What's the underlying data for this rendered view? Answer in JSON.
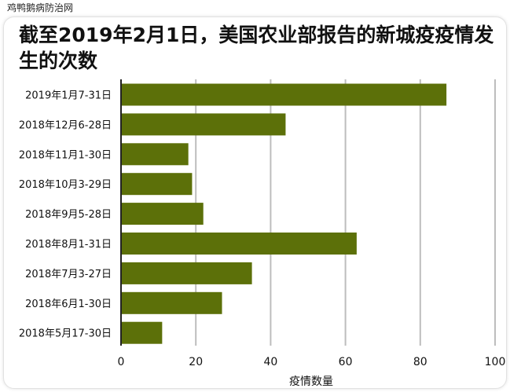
{
  "watermark": "鸡鸭鹅病防治网",
  "chart_data": {
    "type": "bar",
    "orientation": "horizontal",
    "title": "截至2019年2月1日，美国农业部报告的新城疫疫情发生的次数",
    "xlabel": "疫情数量",
    "ylabel": "",
    "categories": [
      "2019年1月7-31日",
      "2018年12月6-28日",
      "2018年11月1-30日",
      "2018年10月3-29日",
      "2018年9月5-28日",
      "2018年8月1-31日",
      "2018年7月3-27日",
      "2018年6月1-30日",
      "2018年5月17-30日"
    ],
    "values": [
      87,
      44,
      18,
      19,
      22,
      63,
      35,
      27,
      11
    ],
    "xlim": [
      0,
      100
    ],
    "xticks": [
      0,
      20,
      40,
      60,
      80,
      100
    ],
    "grid": "vertical",
    "legend": "none",
    "colors": {
      "bar": "#5c7009",
      "grid": "#bdbdbd",
      "axis": "#222222"
    }
  }
}
